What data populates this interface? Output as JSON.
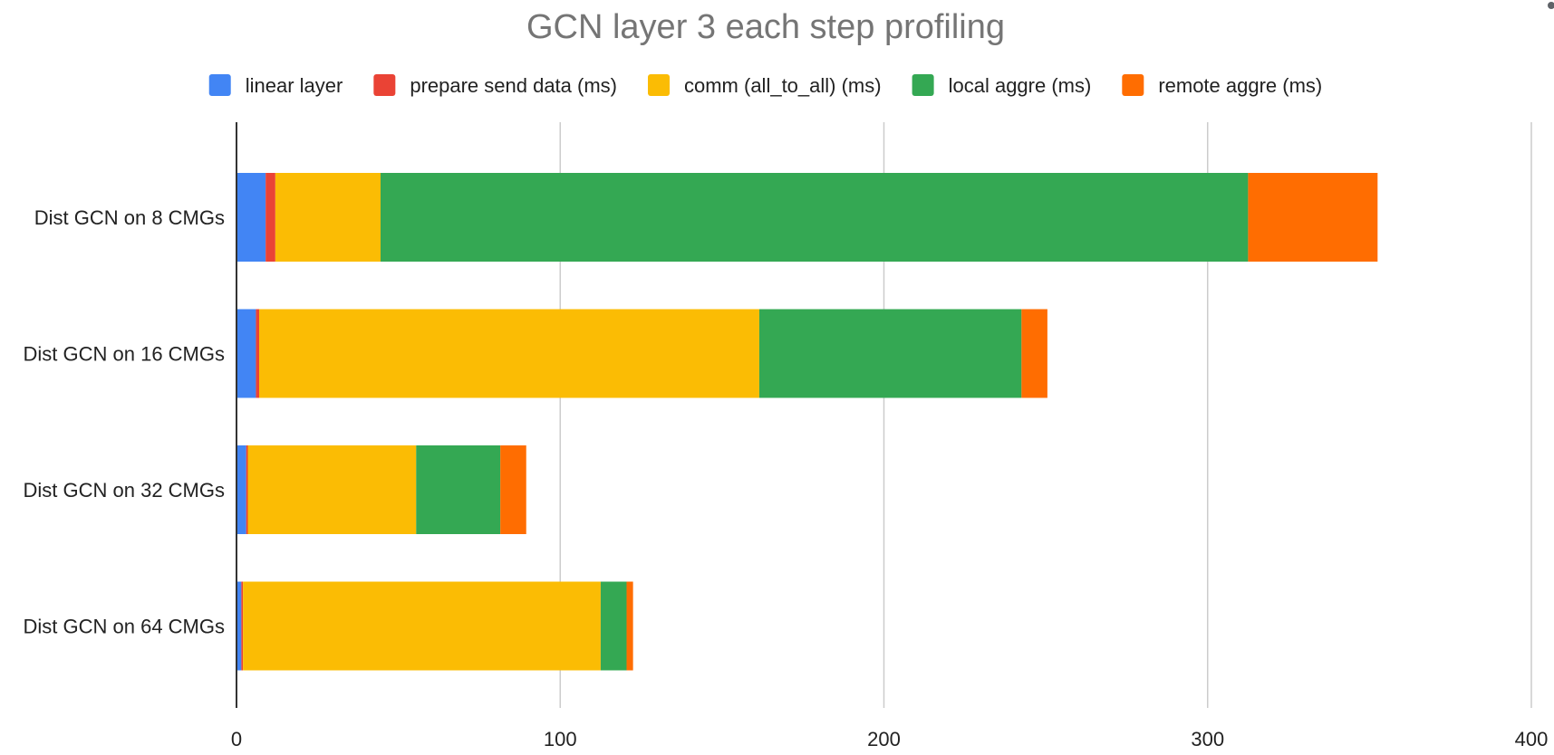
{
  "chart_data": {
    "type": "bar",
    "orientation": "horizontal",
    "stacked": true,
    "title": "GCN layer 3 each step profiling",
    "xlabel": "",
    "ylabel": "",
    "xlim": [
      0,
      400
    ],
    "xticks": [
      0,
      100,
      200,
      300,
      400
    ],
    "grid": true,
    "legend_position": "top",
    "categories": [
      "Dist GCN on 8 CMGs",
      "Dist GCN on 16 CMGs",
      "Dist GCN on 32 CMGs",
      "Dist GCN on 64 CMGs"
    ],
    "series": [
      {
        "name": "linear layer",
        "color": "#4285f4",
        "values": [
          9,
          6,
          3,
          1.5
        ]
      },
      {
        "name": "prepare send data (ms)",
        "color": "#ea4335",
        "values": [
          3,
          1,
          0.5,
          0.5
        ]
      },
      {
        "name": "comm (all_to_all) (ms)",
        "color": "#fbbc04",
        "values": [
          32.5,
          154.5,
          52,
          110.5
        ]
      },
      {
        "name": "local aggre (ms)",
        "color": "#34a853",
        "values": [
          268,
          81,
          26,
          8
        ]
      },
      {
        "name": "remote aggre (ms)",
        "color": "#ff6d01",
        "values": [
          40,
          8,
          8,
          2
        ]
      }
    ]
  }
}
